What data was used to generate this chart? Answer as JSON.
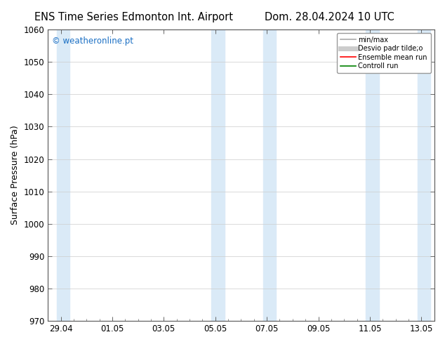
{
  "title_left": "ENS Time Series Edmonton Int. Airport",
  "title_right": "Dom. 28.04.2024 10 UTC",
  "ylabel": "Surface Pressure (hPa)",
  "ylim": [
    970,
    1060
  ],
  "yticks": [
    970,
    980,
    990,
    1000,
    1010,
    1020,
    1030,
    1040,
    1050,
    1060
  ],
  "xtick_labels": [
    "29.04",
    "01.05",
    "03.05",
    "05.05",
    "07.05",
    "09.05",
    "11.05",
    "13.05"
  ],
  "xtick_positions": [
    0,
    2,
    4,
    6,
    8,
    10,
    12,
    14
  ],
  "shaded_bands": [
    {
      "x_start": -0.15,
      "x_end": 0.35,
      "color": "#daeaf7"
    },
    {
      "x_start": 5.85,
      "x_end": 6.35,
      "color": "#daeaf7"
    },
    {
      "x_start": 7.85,
      "x_end": 8.35,
      "color": "#daeaf7"
    },
    {
      "x_start": 11.85,
      "x_end": 12.35,
      "color": "#daeaf7"
    },
    {
      "x_start": 13.85,
      "x_end": 14.35,
      "color": "#daeaf7"
    }
  ],
  "watermark_text": "© weatheronline.pt",
  "watermark_color": "#1a6fc4",
  "legend_items": [
    {
      "label": "min/max",
      "color": "#aaaaaa",
      "lw": 1.2,
      "style": "solid"
    },
    {
      "label": "Desvio padr tilde;o",
      "color": "#cccccc",
      "lw": 5,
      "style": "solid"
    },
    {
      "label": "Ensemble mean run",
      "color": "#ff0000",
      "lw": 1.2,
      "style": "solid"
    },
    {
      "label": "Controll run",
      "color": "#008000",
      "lw": 1.2,
      "style": "solid"
    }
  ],
  "bg_color": "#ffffff",
  "axes_bg_color": "#ffffff",
  "grid_color": "#cccccc",
  "tick_label_fontsize": 8.5,
  "axis_label_fontsize": 9,
  "title_fontsize": 10.5,
  "xlim": [
    -0.5,
    14.5
  ]
}
